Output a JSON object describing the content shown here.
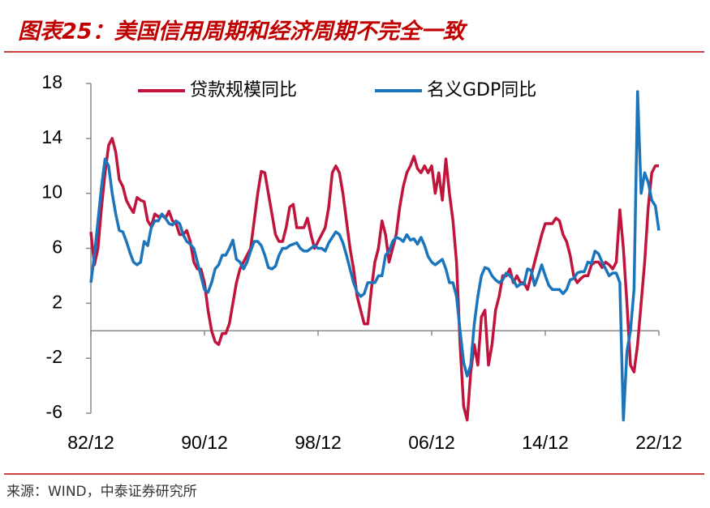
{
  "chart_data": {
    "type": "line",
    "title": "图表25：美国信用周期和经济周期不完全一致",
    "source": "来源：WIND，中泰证券研究所",
    "categories": [
      "82/12",
      null,
      null,
      null,
      null,
      null,
      null,
      null,
      null,
      null,
      null,
      null,
      null,
      null,
      null,
      null,
      null,
      null,
      null,
      null,
      null,
      null,
      null,
      null,
      null,
      null,
      null,
      null,
      null,
      null,
      null,
      null,
      "90/12",
      null,
      null,
      null,
      null,
      null,
      null,
      null,
      null,
      null,
      null,
      null,
      null,
      null,
      null,
      null,
      null,
      null,
      null,
      null,
      null,
      null,
      null,
      null,
      null,
      null,
      null,
      null,
      null,
      null,
      null,
      null,
      "98/12",
      null,
      null,
      null,
      null,
      null,
      null,
      null,
      null,
      null,
      null,
      null,
      null,
      null,
      null,
      null,
      null,
      null,
      null,
      null,
      null,
      null,
      null,
      null,
      null,
      null,
      null,
      null,
      null,
      null,
      null,
      null,
      "06/12",
      null,
      null,
      null,
      null,
      null,
      null,
      null,
      null,
      null,
      null,
      null,
      null,
      null,
      null,
      null,
      null,
      null,
      null,
      null,
      null,
      null,
      null,
      null,
      null,
      null,
      null,
      null,
      null,
      null,
      null,
      null,
      "14/12",
      null,
      null,
      null,
      null,
      null,
      null,
      null,
      null,
      null,
      null,
      null,
      null,
      null,
      null,
      null,
      null,
      null,
      null,
      null,
      null,
      null,
      null,
      null,
      null,
      null,
      null,
      null,
      null,
      null,
      null,
      null,
      "22/12"
    ],
    "series": [
      {
        "name": "贷款规模同比",
        "color": "#c0143c",
        "values": [
          7.2,
          4.8,
          6,
          9,
          11.5,
          13.5,
          14,
          13,
          11,
          10.5,
          9.5,
          9,
          8.6,
          9.7,
          9.5,
          9.4,
          8,
          7.6,
          8.5,
          8.3,
          8.4,
          8.2,
          8.7,
          8,
          7.8,
          7,
          7,
          7.3,
          6.5,
          5,
          4.5,
          4.5,
          3.5,
          1.5,
          0,
          -0.8,
          -1,
          -0.2,
          -0.2,
          0.5,
          2,
          3.5,
          4.5,
          5,
          5.5,
          6,
          8,
          10,
          11.6,
          11.5,
          10,
          8.5,
          7,
          6.5,
          6.5,
          7.5,
          9,
          9.2,
          7.5,
          7.5,
          7.5,
          8.2,
          7,
          6,
          6.5,
          7,
          7.5,
          9,
          11.5,
          12,
          11.5,
          10,
          8,
          6,
          4.5,
          2.5,
          1.5,
          0.5,
          0.5,
          3,
          5,
          6,
          8,
          7,
          5,
          6,
          7,
          9,
          10.5,
          11.5,
          12,
          12.7,
          11.8,
          11.5,
          12,
          11.5,
          12,
          10,
          11.5,
          9.5,
          12.5,
          10,
          8,
          5,
          -1,
          -5.5,
          -6.5,
          -3,
          -1,
          -2.5,
          1,
          1.5,
          -2.5,
          -1,
          1.5,
          2.5,
          4,
          4,
          4.5,
          3.5,
          4,
          3.5,
          3.5,
          3,
          4,
          5,
          6,
          7,
          7.8,
          7.8,
          7.8,
          8.2,
          8,
          7,
          6.5,
          5.5,
          4,
          3.5,
          3.8,
          4,
          4,
          4.8,
          5,
          5,
          4.6,
          5,
          4.8,
          4.5,
          5,
          8.8,
          6,
          2,
          -2.5,
          -3,
          -1,
          2,
          5,
          9,
          11.5,
          12,
          12
        ]
      },
      {
        "name": "名义GDP同比",
        "color": "#1a75bc",
        "values": [
          3.5,
          5.5,
          8,
          10.5,
          12.5,
          12,
          10,
          8.5,
          7.3,
          7.2,
          6.5,
          5.7,
          5,
          4.8,
          5,
          6.5,
          6.2,
          7.5,
          8,
          8,
          8.5,
          8.2,
          7.8,
          7.7,
          8,
          7.8,
          7,
          6.5,
          6.3,
          6,
          5,
          4,
          3,
          2.8,
          3.5,
          4.5,
          4.8,
          5.5,
          5.5,
          6,
          6.6,
          5.2,
          5,
          4.5,
          5,
          5.8,
          6.5,
          6.5,
          6.2,
          5.5,
          4.6,
          4.5,
          4.7,
          5.5,
          6,
          6,
          6.2,
          6.3,
          6.4,
          6,
          5.8,
          5.8,
          6,
          6.2,
          6,
          6,
          5.8,
          6.4,
          6.8,
          7.2,
          7,
          6.4,
          5.5,
          4.5,
          3.5,
          2.8,
          2.5,
          2.7,
          3.5,
          3.5,
          3.5,
          4,
          4,
          5.5,
          5.8,
          6.5,
          6.8,
          6.7,
          6.5,
          7,
          6.6,
          6.7,
          6.3,
          6.8,
          6.2,
          5.4,
          5,
          4.8,
          5,
          5.2,
          4.5,
          3.5,
          3.5,
          2.5,
          0,
          -2.3,
          -3.3,
          -2.5,
          0.5,
          2.5,
          4,
          4.6,
          4.5,
          4,
          3.7,
          3.5,
          3.7,
          4.2,
          4,
          3.7,
          3.2,
          3.4,
          3.4,
          4.5,
          4.4,
          3.3,
          4,
          4.8,
          4,
          3.3,
          3,
          3,
          3,
          2.7,
          3,
          3.7,
          3.8,
          4.2,
          4.3,
          4.3,
          5,
          4.9,
          5.8,
          5.6,
          5,
          4.5,
          4,
          4.2,
          4.2,
          3.5,
          -6.5,
          -1.5,
          0,
          3,
          17.4,
          10,
          11.5,
          10.8,
          9.5,
          9.1,
          7.3
        ]
      }
    ],
    "ylim": [
      -6,
      18
    ],
    "yticks": [
      -6,
      -2,
      2,
      6,
      10,
      14,
      18
    ]
  }
}
